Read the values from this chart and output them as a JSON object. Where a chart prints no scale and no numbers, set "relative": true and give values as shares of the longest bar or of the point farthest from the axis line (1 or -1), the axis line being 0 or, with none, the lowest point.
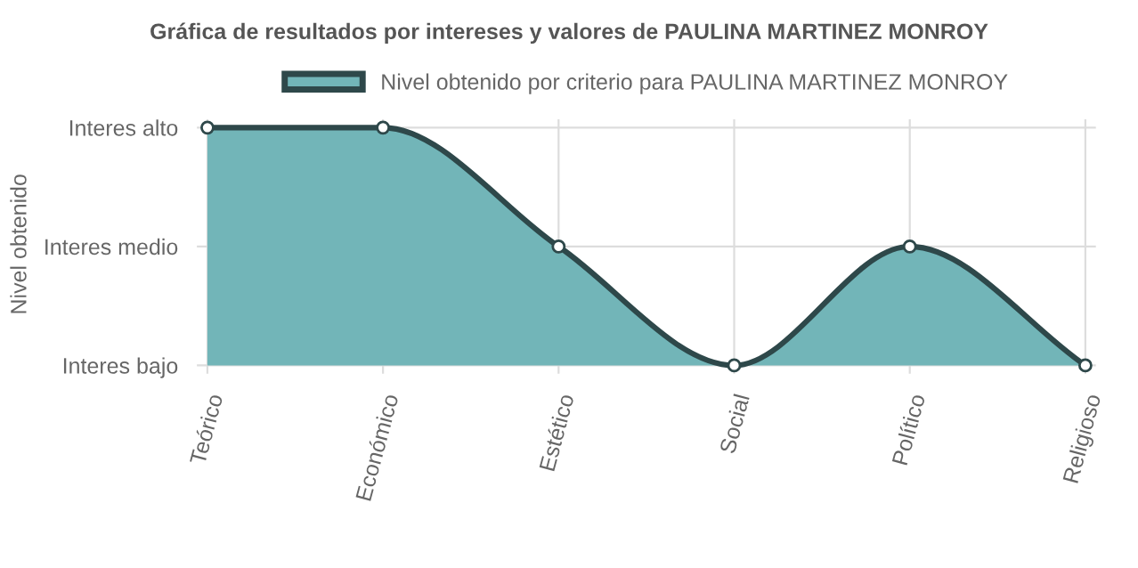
{
  "chart_data": {
    "type": "area",
    "title": "Gráfica de resultados por intereses y valores de PAULINA MARTINEZ MONROY",
    "annotations": [
      "Nivel obtenido"
    ],
    "categories": [
      "Teórico",
      "Económico",
      "Estético",
      "Social",
      "Político",
      "Religioso"
    ],
    "series": [
      {
        "name": "Nivel obtenido por criterio para PAULINA MARTINEZ MONROY",
        "color": "#72b5b8",
        "values": [
          1,
          1,
          0.5,
          0,
          0.5,
          0
        ]
      }
    ],
    "relative": true,
    "y_categories": [
      "Interes alto",
      "Interes medio",
      "Interes bajo"
    ],
    "grid": true,
    "legend": "top",
    "marker": "circle"
  }
}
